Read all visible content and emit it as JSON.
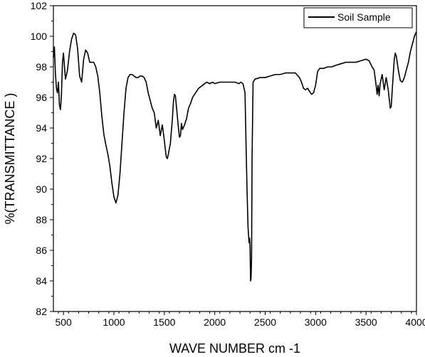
{
  "chart_data": {
    "type": "line",
    "title": "",
    "xlabel": "WAVE NUMBER cm -1",
    "ylabel": "%(TRANSMITTANCE )",
    "xlim": [
      400,
      4000
    ],
    "ylim": [
      82,
      102
    ],
    "xticks": [
      500,
      1000,
      1500,
      2000,
      2500,
      3000,
      3500,
      4000
    ],
    "yticks": [
      82,
      84,
      86,
      88,
      90,
      92,
      94,
      96,
      98,
      100,
      102
    ],
    "grid": false,
    "legend_position": "top-right",
    "series": [
      {
        "name": "Soil Sample",
        "color": "#000000",
        "points": [
          [
            400,
            98.6
          ],
          [
            410,
            99.3
          ],
          [
            420,
            97.6
          ],
          [
            430,
            96.6
          ],
          [
            440,
            96.3
          ],
          [
            450,
            97.0
          ],
          [
            460,
            95.5
          ],
          [
            470,
            95.2
          ],
          [
            480,
            96.2
          ],
          [
            490,
            98.3
          ],
          [
            500,
            98.9
          ],
          [
            510,
            98.0
          ],
          [
            520,
            97.2
          ],
          [
            540,
            97.8
          ],
          [
            560,
            99.0
          ],
          [
            580,
            99.8
          ],
          [
            600,
            100.2
          ],
          [
            620,
            100.1
          ],
          [
            640,
            99.2
          ],
          [
            660,
            97.4
          ],
          [
            680,
            97.0
          ],
          [
            700,
            98.5
          ],
          [
            720,
            99.1
          ],
          [
            740,
            98.9
          ],
          [
            760,
            98.3
          ],
          [
            780,
            98.3
          ],
          [
            800,
            98.3
          ],
          [
            820,
            98.0
          ],
          [
            840,
            97.4
          ],
          [
            860,
            96.3
          ],
          [
            880,
            94.8
          ],
          [
            900,
            93.6
          ],
          [
            920,
            92.9
          ],
          [
            940,
            92.3
          ],
          [
            960,
            91.5
          ],
          [
            980,
            90.4
          ],
          [
            1000,
            89.5
          ],
          [
            1020,
            89.1
          ],
          [
            1040,
            89.6
          ],
          [
            1060,
            91.0
          ],
          [
            1080,
            93.0
          ],
          [
            1100,
            95.0
          ],
          [
            1120,
            96.6
          ],
          [
            1140,
            97.3
          ],
          [
            1160,
            97.5
          ],
          [
            1180,
            97.5
          ],
          [
            1200,
            97.4
          ],
          [
            1220,
            97.3
          ],
          [
            1240,
            97.3
          ],
          [
            1260,
            97.4
          ],
          [
            1280,
            97.4
          ],
          [
            1300,
            97.3
          ],
          [
            1320,
            97.0
          ],
          [
            1340,
            96.3
          ],
          [
            1360,
            95.8
          ],
          [
            1380,
            95.3
          ],
          [
            1400,
            95.0
          ],
          [
            1420,
            94.0
          ],
          [
            1440,
            94.5
          ],
          [
            1460,
            93.5
          ],
          [
            1480,
            94.2
          ],
          [
            1500,
            93.2
          ],
          [
            1510,
            92.6
          ],
          [
            1520,
            92.1
          ],
          [
            1530,
            92.0
          ],
          [
            1540,
            92.3
          ],
          [
            1560,
            93.0
          ],
          [
            1580,
            94.6
          ],
          [
            1590,
            95.7
          ],
          [
            1600,
            96.2
          ],
          [
            1610,
            96.1
          ],
          [
            1620,
            95.4
          ],
          [
            1640,
            94.0
          ],
          [
            1650,
            93.4
          ],
          [
            1660,
            93.5
          ],
          [
            1670,
            94.3
          ],
          [
            1680,
            93.9
          ],
          [
            1700,
            94.2
          ],
          [
            1720,
            94.6
          ],
          [
            1740,
            95.3
          ],
          [
            1760,
            95.6
          ],
          [
            1780,
            96.0
          ],
          [
            1800,
            96.2
          ],
          [
            1820,
            96.4
          ],
          [
            1840,
            96.6
          ],
          [
            1860,
            96.7
          ],
          [
            1880,
            96.8
          ],
          [
            1900,
            96.9
          ],
          [
            1920,
            97.0
          ],
          [
            1950,
            96.9
          ],
          [
            1980,
            97.0
          ],
          [
            2000,
            96.9
          ],
          [
            2050,
            97.0
          ],
          [
            2100,
            97.0
          ],
          [
            2150,
            97.0
          ],
          [
            2200,
            97.0
          ],
          [
            2240,
            96.9
          ],
          [
            2260,
            97.0
          ],
          [
            2280,
            96.9
          ],
          [
            2300,
            96.3
          ],
          [
            2310,
            93.0
          ],
          [
            2320,
            90.0
          ],
          [
            2330,
            87.5
          ],
          [
            2340,
            86.5
          ],
          [
            2345,
            86.8
          ],
          [
            2350,
            86.3
          ],
          [
            2355,
            84.0
          ],
          [
            2360,
            84.2
          ],
          [
            2365,
            85.5
          ],
          [
            2370,
            92.0
          ],
          [
            2380,
            97.0
          ],
          [
            2400,
            97.2
          ],
          [
            2450,
            97.3
          ],
          [
            2500,
            97.3
          ],
          [
            2550,
            97.4
          ],
          [
            2600,
            97.5
          ],
          [
            2650,
            97.5
          ],
          [
            2700,
            97.6
          ],
          [
            2750,
            97.6
          ],
          [
            2800,
            97.6
          ],
          [
            2840,
            97.3
          ],
          [
            2860,
            97.0
          ],
          [
            2880,
            96.6
          ],
          [
            2900,
            96.5
          ],
          [
            2920,
            96.6
          ],
          [
            2940,
            96.4
          ],
          [
            2960,
            96.2
          ],
          [
            2980,
            96.3
          ],
          [
            3000,
            96.8
          ],
          [
            3020,
            97.7
          ],
          [
            3040,
            97.9
          ],
          [
            3080,
            97.9
          ],
          [
            3120,
            98.0
          ],
          [
            3160,
            98.0
          ],
          [
            3200,
            98.1
          ],
          [
            3250,
            98.2
          ],
          [
            3300,
            98.3
          ],
          [
            3350,
            98.3
          ],
          [
            3400,
            98.3
          ],
          [
            3450,
            98.4
          ],
          [
            3500,
            98.5
          ],
          [
            3530,
            98.4
          ],
          [
            3560,
            98.0
          ],
          [
            3580,
            97.8
          ],
          [
            3600,
            96.8
          ],
          [
            3610,
            96.2
          ],
          [
            3620,
            96.8
          ],
          [
            3630,
            96.1
          ],
          [
            3640,
            96.9
          ],
          [
            3660,
            97.5
          ],
          [
            3680,
            96.5
          ],
          [
            3700,
            97.3
          ],
          [
            3720,
            96.5
          ],
          [
            3740,
            95.3
          ],
          [
            3750,
            95.4
          ],
          [
            3760,
            96.5
          ],
          [
            3780,
            98.5
          ],
          [
            3790,
            98.9
          ],
          [
            3800,
            98.7
          ],
          [
            3820,
            97.8
          ],
          [
            3840,
            97.1
          ],
          [
            3860,
            97.0
          ],
          [
            3880,
            97.3
          ],
          [
            3900,
            97.8
          ],
          [
            3920,
            98.3
          ],
          [
            3940,
            99.0
          ],
          [
            3960,
            99.5
          ],
          [
            3980,
            100.0
          ],
          [
            4000,
            100.3
          ]
        ]
      }
    ]
  }
}
